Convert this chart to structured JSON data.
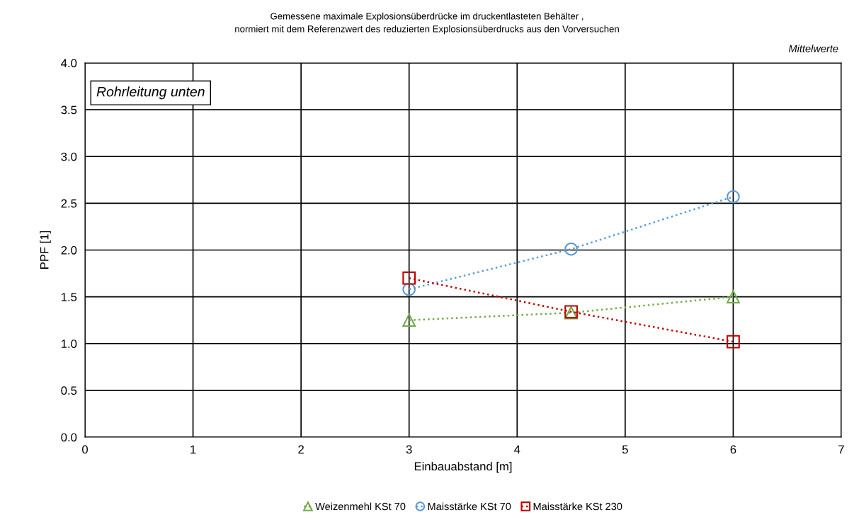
{
  "chart_data": {
    "type": "line",
    "title": "Gemessene maximale Explosionsüberdrücke im druckentlasteten Behälter ,\nnormiert mit dem Referenzwert des reduzierten Explosionsüberdrucks aus den Vorversuchen",
    "xlabel": "Einbauabstand [m]",
    "ylabel": "PPF [1]",
    "annotations": [
      "Mittelwerte",
      "Rohrleitung unten"
    ],
    "x": [
      3,
      4.5,
      6
    ],
    "series": [
      {
        "name": "Weizenmehl KSt 70",
        "color": "#70ad47",
        "marker": "triangle",
        "values": [
          1.25,
          1.33,
          1.5
        ]
      },
      {
        "name": "Maisstärke KSt 70",
        "color": "#5b9bd5",
        "marker": "circle",
        "values": [
          1.58,
          2.01,
          2.57
        ]
      },
      {
        "name": "Maisstärke KSt 230",
        "color": "#c00000",
        "marker": "square",
        "values": [
          1.7,
          1.34,
          1.02
        ]
      }
    ],
    "line_style": "dotted",
    "xlim": [
      0,
      7
    ],
    "xticks": [
      0,
      1,
      2,
      3,
      4,
      5,
      6,
      7
    ],
    "ylim": [
      0,
      4
    ],
    "yticks": [
      {
        "value": 0,
        "label": "0.0"
      },
      {
        "value": 0.5,
        "label": "0.5"
      },
      {
        "value": 1,
        "label": "1.0"
      },
      {
        "value": 1.5,
        "label": "1.5"
      },
      {
        "value": 2,
        "label": "2.0"
      },
      {
        "value": 2.5,
        "label": "2.5"
      },
      {
        "value": 3,
        "label": "3.0"
      },
      {
        "value": 3.5,
        "label": "3.5"
      },
      {
        "value": 4,
        "label": "4.0"
      }
    ],
    "grid": true,
    "legend": "bottom"
  }
}
